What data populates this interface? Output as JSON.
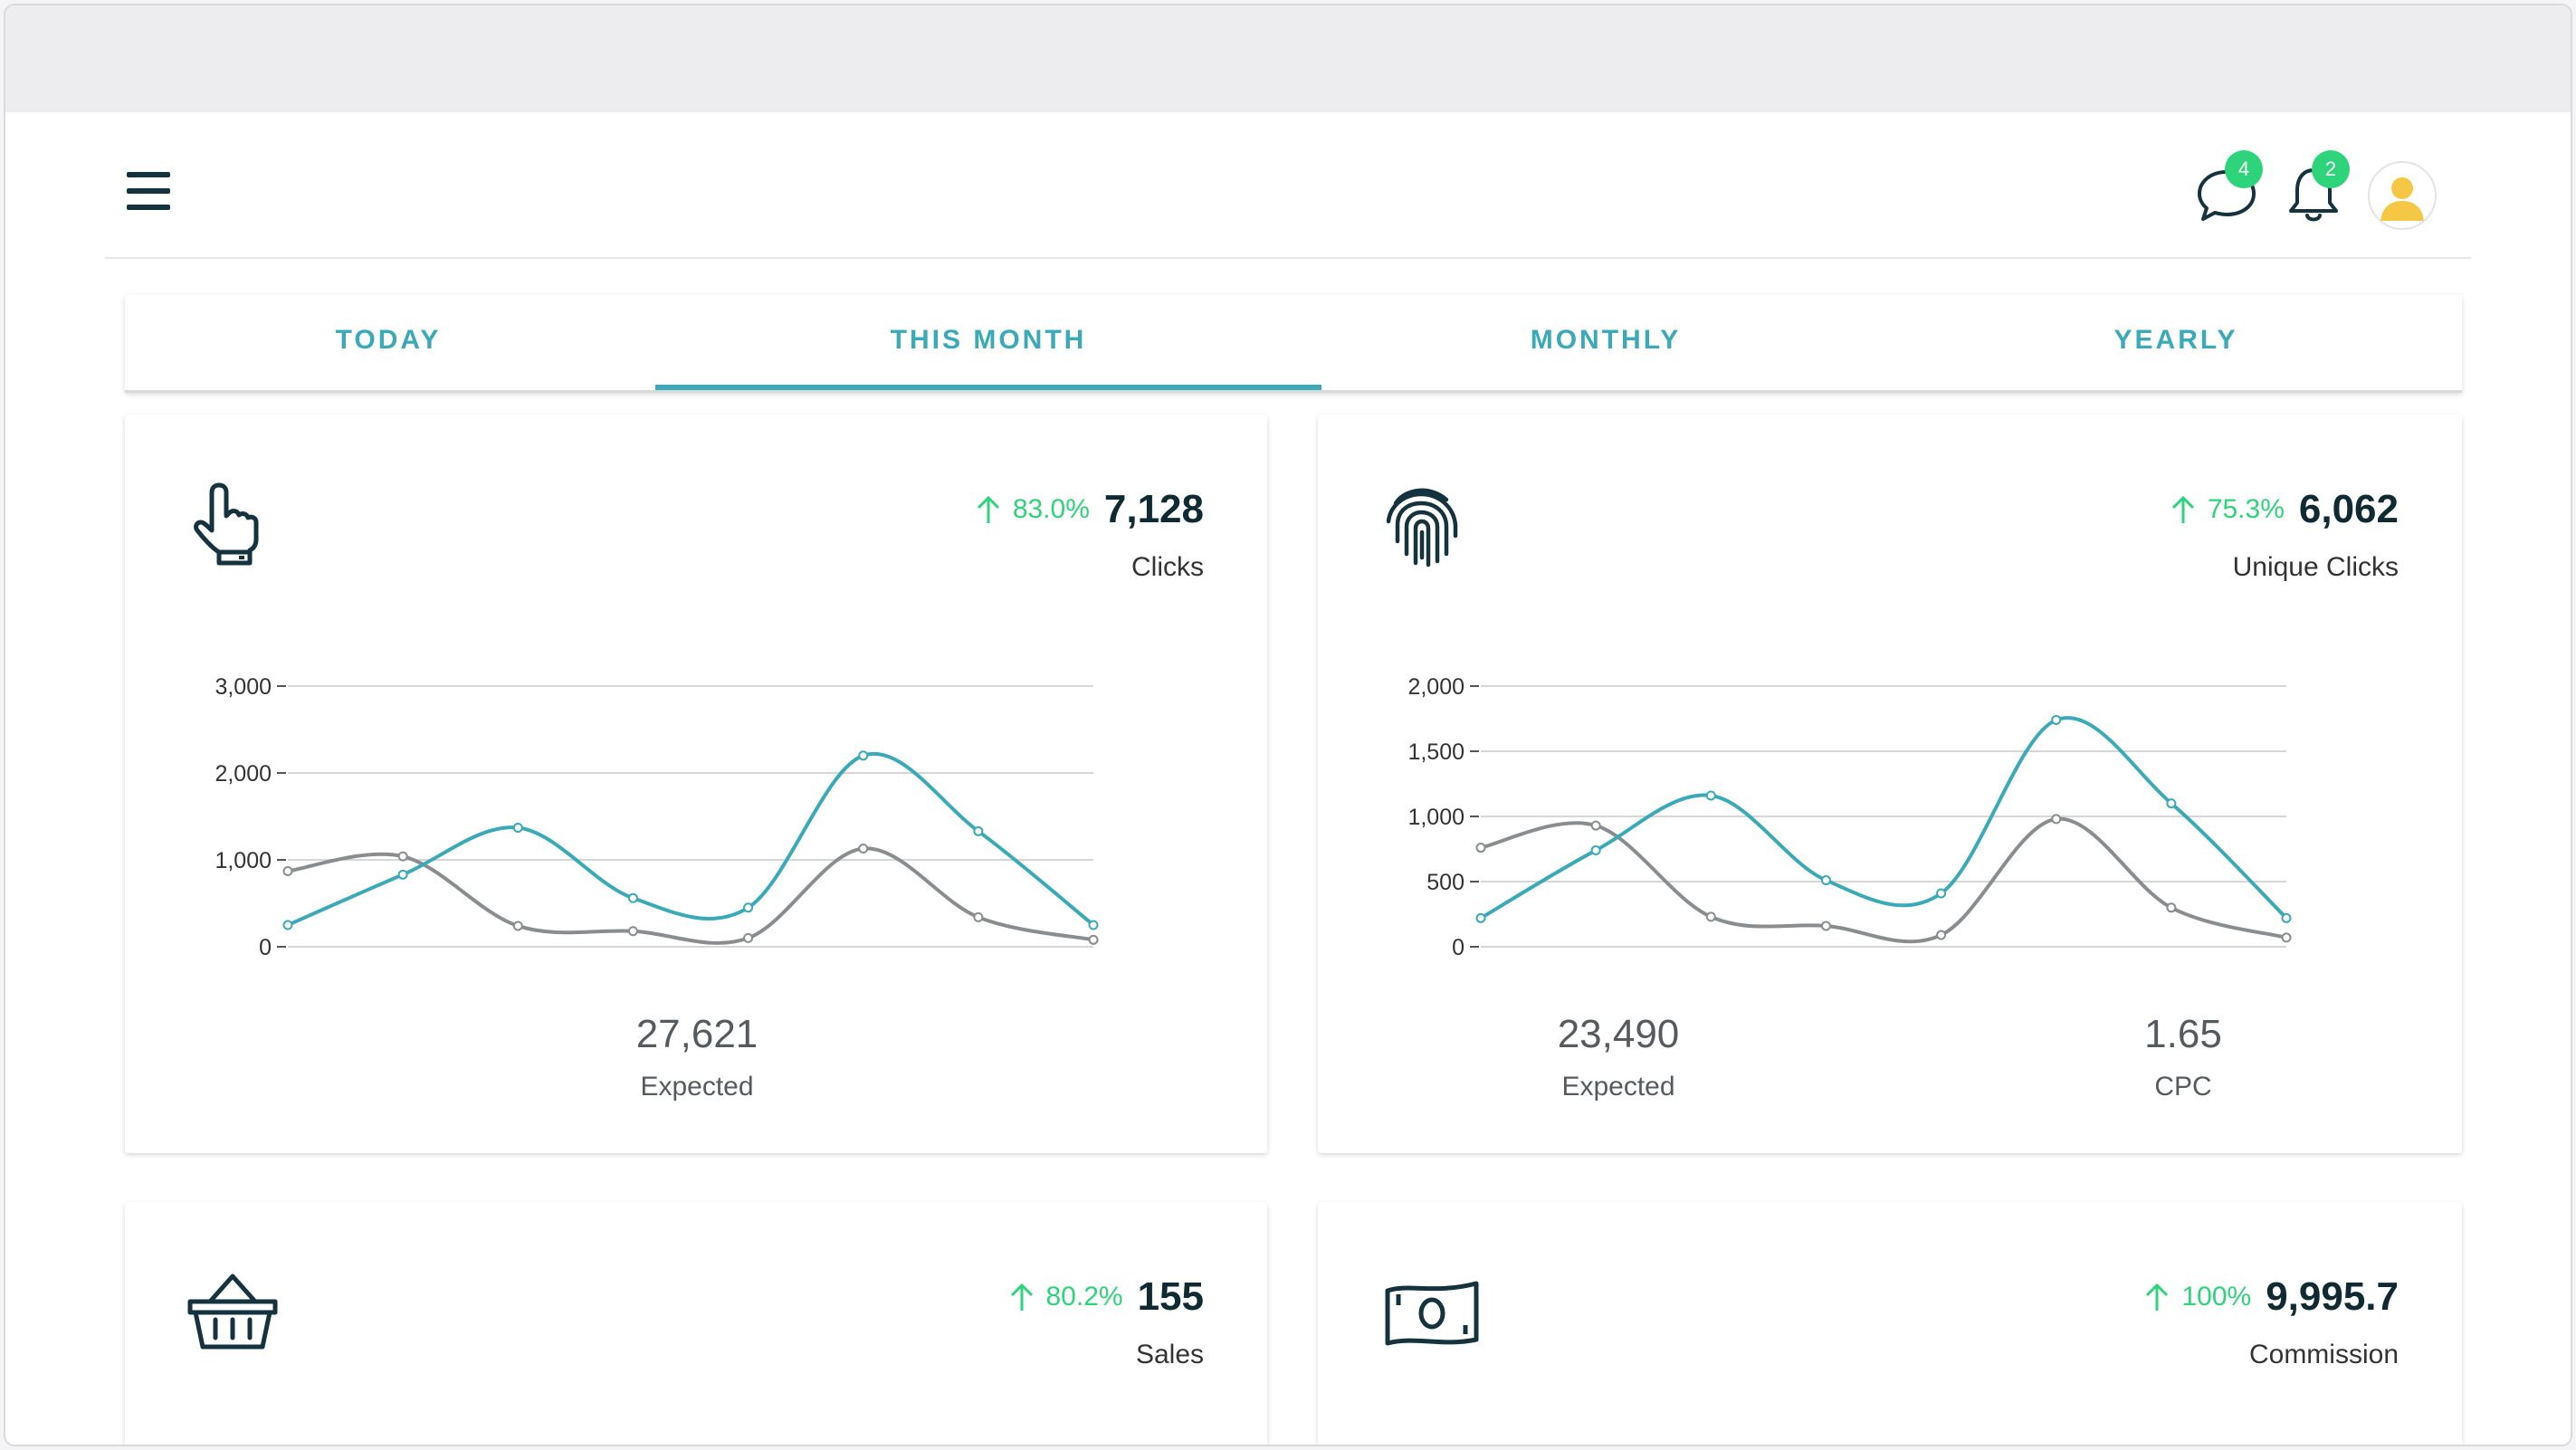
{
  "header": {
    "menu_icon": "hamburger-menu-icon",
    "messages": {
      "icon": "chat-bubble-icon",
      "count": "4"
    },
    "notifications": {
      "icon": "bell-icon",
      "count": "2"
    },
    "avatar": {
      "icon": "user-avatar-icon"
    }
  },
  "tabs": [
    {
      "label": "TODAY",
      "active": false
    },
    {
      "label": "THIS MONTH",
      "active": true
    },
    {
      "label": "MONTHLY",
      "active": false
    },
    {
      "label": "YEARLY",
      "active": false
    }
  ],
  "colors": {
    "accent": "#3aa9b8",
    "positive": "#2ed47a",
    "series_actual": "#3aa9b8",
    "series_expected": "#8a8d8f",
    "dark": "#15323f"
  },
  "cards": {
    "clicks": {
      "icon": "pointer-hand-icon",
      "trend": "83.0%",
      "value": "7,128",
      "label": "Clicks",
      "stats": [
        {
          "value": "27,621",
          "label": "Expected"
        }
      ]
    },
    "unique_clicks": {
      "icon": "fingerprint-icon",
      "trend": "75.3%",
      "value": "6,062",
      "label": "Unique Clicks",
      "stats": [
        {
          "value": "23,490",
          "label": "Expected"
        },
        {
          "value": "1.65",
          "label": "CPC"
        }
      ]
    },
    "sales": {
      "icon": "shopping-basket-icon",
      "trend": "80.2%",
      "value": "155",
      "label": "Sales"
    },
    "commission": {
      "icon": "banknote-icon",
      "trend": "100%",
      "value": "9,995.7",
      "label": "Commission"
    }
  },
  "chart_data": [
    {
      "type": "line",
      "x": [
        1,
        2,
        3,
        4,
        5,
        6,
        7,
        8
      ],
      "ylim": [
        0,
        3000
      ],
      "yticks": [
        0,
        1000,
        2000,
        3000
      ],
      "ytick_labels": [
        "0",
        "1,000",
        "2,000",
        "3,000"
      ],
      "grid": true,
      "series": [
        {
          "values": [
            250,
            830,
            1370,
            560,
            450,
            2200,
            1330,
            250
          ]
        },
        {
          "values": [
            870,
            1040,
            240,
            180,
            100,
            1130,
            340,
            80
          ]
        }
      ]
    },
    {
      "type": "line",
      "x": [
        1,
        2,
        3,
        4,
        5,
        6,
        7,
        8
      ],
      "ylim": [
        0,
        2000
      ],
      "yticks": [
        0,
        500,
        1000,
        1500,
        2000
      ],
      "ytick_labels": [
        "0",
        "500",
        "1,000",
        "1,500",
        "2,000"
      ],
      "grid": true,
      "series": [
        {
          "values": [
            220,
            740,
            1160,
            510,
            410,
            1740,
            1100,
            220
          ]
        },
        {
          "values": [
            760,
            930,
            230,
            160,
            90,
            980,
            300,
            70
          ]
        }
      ]
    }
  ]
}
